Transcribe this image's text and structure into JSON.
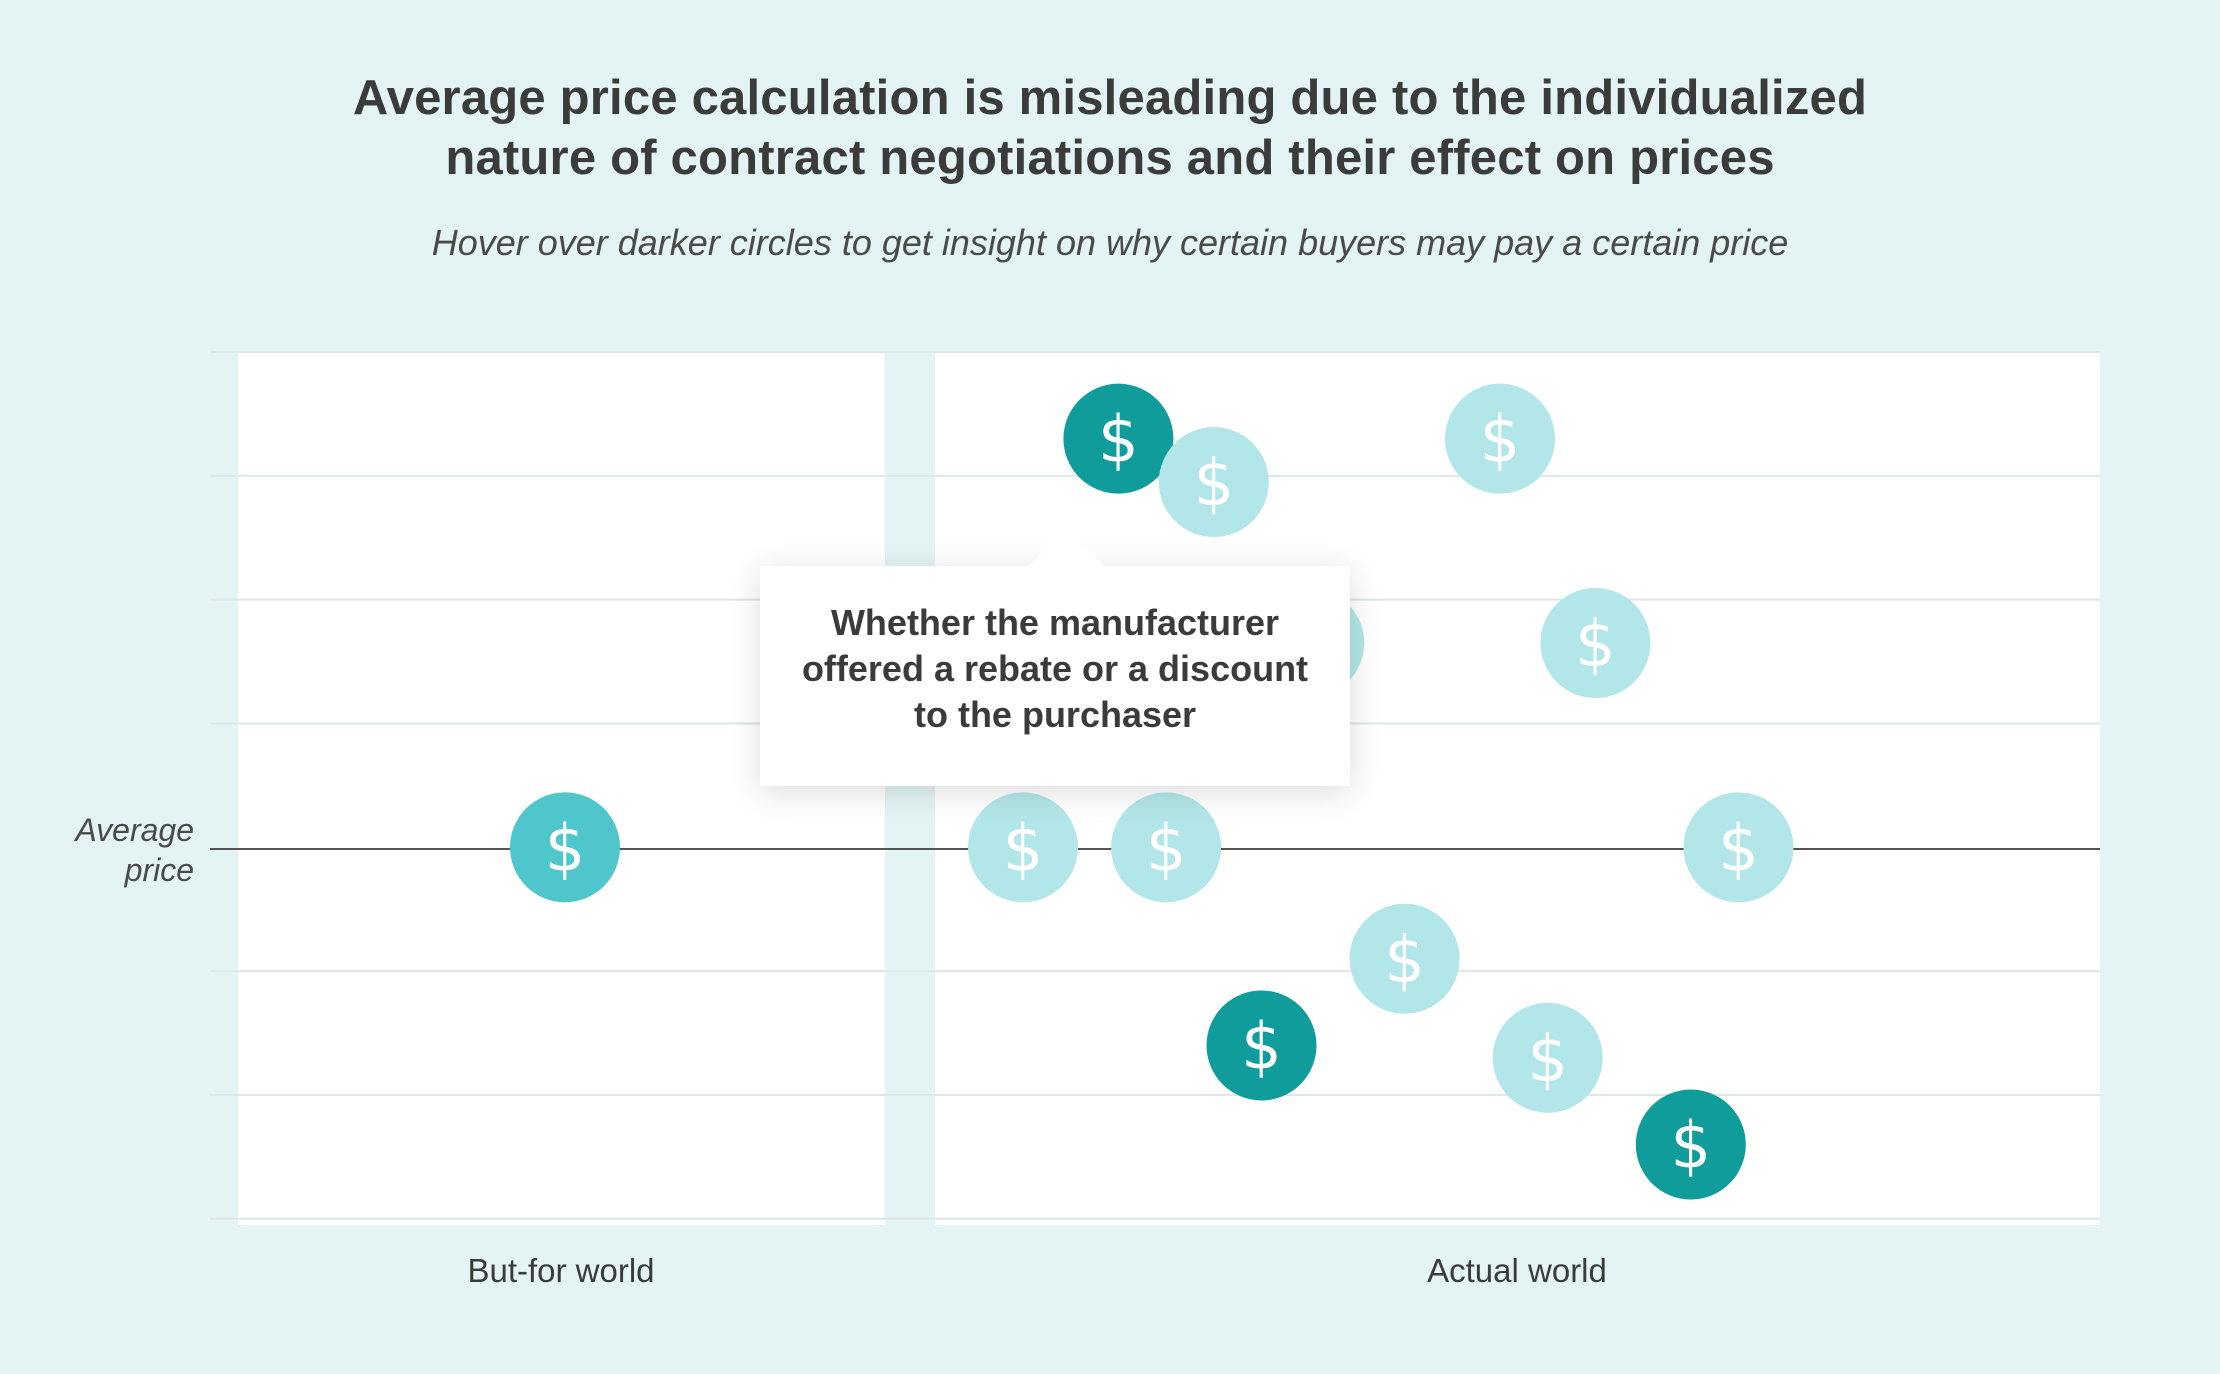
{
  "header": {
    "title_line1": "Average price calculation is misleading due to the individualized",
    "title_line2": "nature of contract negotiations and their effect on prices",
    "subtitle": "Hover over darker circles to get insight on why certain buyers may pay a certain price"
  },
  "tooltip": {
    "line1": "Whether the manufacturer",
    "line2": "offered a rebate or a discount",
    "line3": "to the purchaser"
  },
  "colors": {
    "background": "#e4f4f4",
    "panel": "#ffffff",
    "dark_circle": "#0f9c9a",
    "medium_circle": "#4fc6cb",
    "light_circle": "#b3e6e8",
    "reference_line": "#555555"
  },
  "chart_data": {
    "type": "scatter",
    "title": "",
    "xlabel": "",
    "ylabel": "",
    "categories": [
      "But-for world",
      "Actual world"
    ],
    "reference_line": {
      "label": "Average price",
      "y": 0
    },
    "y_axis": {
      "ylim": [
        -3.05,
        4
      ],
      "tick_labels": false,
      "grid": true
    },
    "icon": "dollar-icon",
    "series": [
      {
        "category": "But-for world",
        "points": [
          {
            "x": 0,
            "y": 0,
            "shade": "medium"
          }
        ]
      },
      {
        "category": "Actual world",
        "points": [
          {
            "x": 1,
            "y": 3.3,
            "shade": "dark",
            "tooltip_shown": true
          },
          {
            "x": 2,
            "y": 2.95,
            "shade": "light"
          },
          {
            "x": 0,
            "y": 0,
            "shade": "light"
          },
          {
            "x": 1.5,
            "y": 0,
            "shade": "light"
          },
          {
            "x": 3,
            "y": 1.65,
            "shade": "light"
          },
          {
            "x": 2.5,
            "y": -1.6,
            "shade": "dark"
          },
          {
            "x": 4,
            "y": -0.9,
            "shade": "light"
          },
          {
            "x": 5,
            "y": 3.3,
            "shade": "light"
          },
          {
            "x": 6,
            "y": 1.65,
            "shade": "light"
          },
          {
            "x": 5.5,
            "y": -1.7,
            "shade": "light"
          },
          {
            "x": 7,
            "y": -2.4,
            "shade": "dark"
          },
          {
            "x": 7.5,
            "y": 0,
            "shade": "light"
          }
        ]
      }
    ]
  }
}
